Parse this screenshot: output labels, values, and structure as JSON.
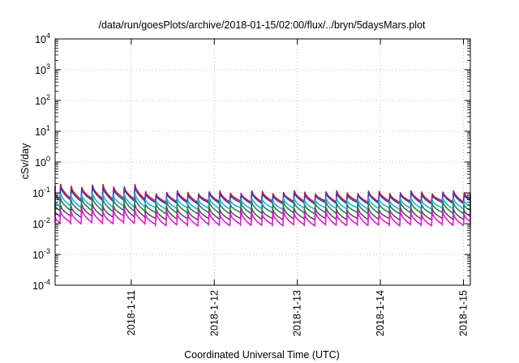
{
  "chart_data": {
    "type": "line",
    "title": "/data/run/goesPlots/archive/2018-01-15/02:00/flux/../bryn/5daysMars.plot",
    "xlabel": "Coordinated Universal Time (UTC)",
    "ylabel": "cSv/day",
    "yscale": "log",
    "ylim": [
      0.0001,
      10000
    ],
    "xlim": [
      "2018-01-10T02:00",
      "2018-01-15T02:00"
    ],
    "grid": true,
    "x_ticks": [
      {
        "label": "2018-1-11",
        "t": "2018-01-11T00:00"
      },
      {
        "label": "2018-1-12",
        "t": "2018-01-12T00:00"
      },
      {
        "label": "2018-1-13",
        "t": "2018-01-13T00:00"
      },
      {
        "label": "2018-1-14",
        "t": "2018-01-14T00:00"
      },
      {
        "label": "2018-1-15",
        "t": "2018-01-15T00:00"
      }
    ],
    "y_ticks": [
      {
        "base": "10",
        "exp": "-4",
        "value": 0.0001
      },
      {
        "base": "10",
        "exp": "-3",
        "value": 0.001
      },
      {
        "base": "10",
        "exp": "-2",
        "value": 0.01
      },
      {
        "base": "10",
        "exp": "-1",
        "value": 0.1
      },
      {
        "base": "10",
        "exp": "0",
        "value": 1
      },
      {
        "base": "10",
        "exp": "1",
        "value": 10
      },
      {
        "base": "10",
        "exp": "2",
        "value": 100
      },
      {
        "base": "10",
        "exp": "3",
        "value": 1000
      },
      {
        "base": "10",
        "exp": "4",
        "value": 10000
      }
    ],
    "series": [
      {
        "color": "#e8151b",
        "peak_early": 0.17,
        "trough_early": 0.064,
        "peak_late": 0.105,
        "trough_late": 0.052
      },
      {
        "color": "#3a3ab8",
        "peak_early": 0.15,
        "trough_early": 0.056,
        "peak_late": 0.095,
        "trough_late": 0.046
      },
      {
        "color": "#19b6d9",
        "peak_early": 0.09,
        "trough_early": 0.036,
        "peak_late": 0.062,
        "trough_late": 0.031
      },
      {
        "color": "#2e7d5b",
        "peak_early": 0.065,
        "trough_early": 0.026,
        "peak_late": 0.046,
        "trough_late": 0.022
      },
      {
        "color": "#555555",
        "peak_early": 0.04,
        "trough_early": 0.017,
        "peak_late": 0.03,
        "trough_late": 0.014
      },
      {
        "color": "#e817d9",
        "peak_early": 0.027,
        "trough_early": 0.0105,
        "peak_late": 0.022,
        "trough_late": 0.009
      }
    ],
    "cycle_hours": 3.07,
    "transition_time": "2018-01-11T02:00"
  }
}
